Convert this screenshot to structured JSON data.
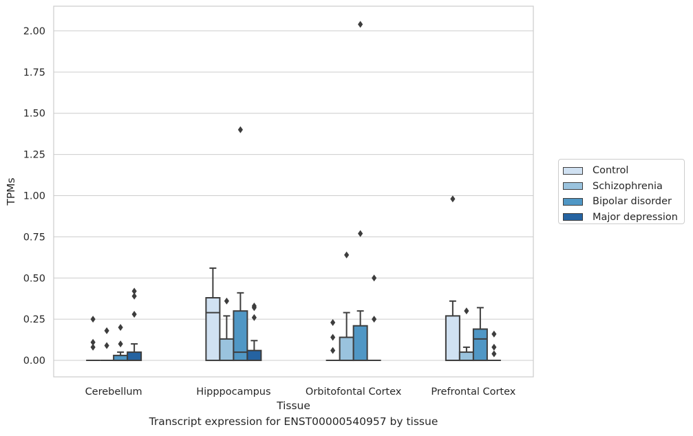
{
  "chart_data": {
    "type": "boxplot",
    "xlabel": "Tissue",
    "ylabel": "TPMs",
    "caption": "Transcript expression for ENST00000540957 by tissue",
    "ylim": [
      -0.1,
      2.15
    ],
    "yticks": [
      0.0,
      0.25,
      0.5,
      0.75,
      1.0,
      1.25,
      1.5,
      1.75,
      2.0
    ],
    "ytick_labels": [
      "0.00",
      "0.25",
      "0.50",
      "0.75",
      "1.00",
      "1.25",
      "1.50",
      "1.75",
      "2.00"
    ],
    "grid": "horizontal",
    "legend_position": "right-outside",
    "categories": [
      "Cerebellum",
      "Hipppocampus",
      "Orbitofontal Cortex",
      "Prefrontal Cortex"
    ],
    "series": [
      {
        "name": "Control",
        "color": "#d0e1f2",
        "boxes": [
          {
            "q1": 0,
            "median": 0,
            "q3": 0,
            "whislo": 0,
            "whishi": 0,
            "fliers": [
              0.25,
              0.11,
              0.08
            ]
          },
          {
            "q1": 0,
            "median": 0.29,
            "q3": 0.38,
            "whislo": 0,
            "whishi": 0.56,
            "fliers": []
          },
          {
            "q1": 0,
            "median": 0,
            "q3": 0,
            "whislo": 0,
            "whishi": 0,
            "fliers": [
              0.23,
              0.14,
              0.06
            ]
          },
          {
            "q1": 0,
            "median": 0,
            "q3": 0.27,
            "whislo": 0,
            "whishi": 0.36,
            "fliers": [
              0.98
            ]
          }
        ]
      },
      {
        "name": "Schizophrenia",
        "color": "#9ac3de",
        "boxes": [
          {
            "q1": 0,
            "median": 0,
            "q3": 0,
            "whislo": 0,
            "whishi": 0,
            "fliers": [
              0.18,
              0.09
            ]
          },
          {
            "q1": 0,
            "median": 0,
            "q3": 0.13,
            "whislo": 0,
            "whishi": 0.27,
            "fliers": [
              0.36
            ]
          },
          {
            "q1": 0,
            "median": 0,
            "q3": 0.14,
            "whislo": 0,
            "whishi": 0.29,
            "fliers": [
              0.64
            ]
          },
          {
            "q1": 0,
            "median": 0,
            "q3": 0.05,
            "whislo": 0,
            "whishi": 0.08,
            "fliers": [
              0.3
            ]
          }
        ]
      },
      {
        "name": "Bipolar disorder",
        "color": "#5097c5",
        "boxes": [
          {
            "q1": 0,
            "median": 0,
            "q3": 0.03,
            "whislo": 0,
            "whishi": 0.05,
            "fliers": [
              0.2,
              0.1
            ]
          },
          {
            "q1": 0,
            "median": 0.05,
            "q3": 0.3,
            "whislo": 0,
            "whishi": 0.41,
            "fliers": [
              1.4
            ]
          },
          {
            "q1": 0,
            "median": 0,
            "q3": 0.21,
            "whislo": 0,
            "whishi": 0.3,
            "fliers": [
              2.04,
              0.77
            ]
          },
          {
            "q1": 0,
            "median": 0.13,
            "q3": 0.19,
            "whislo": 0,
            "whishi": 0.32,
            "fliers": []
          }
        ]
      },
      {
        "name": "Major depression",
        "color": "#2563a1",
        "boxes": [
          {
            "q1": 0,
            "median": 0,
            "q3": 0.05,
            "whislo": 0,
            "whishi": 0.1,
            "fliers": [
              0.42,
              0.39,
              0.28
            ]
          },
          {
            "q1": 0,
            "median": 0,
            "q3": 0.06,
            "whislo": 0,
            "whishi": 0.12,
            "fliers": [
              0.33,
              0.32,
              0.26
            ]
          },
          {
            "q1": 0,
            "median": 0,
            "q3": 0,
            "whislo": 0,
            "whishi": 0,
            "fliers": [
              0.5,
              0.25
            ]
          },
          {
            "q1": 0,
            "median": 0,
            "q3": 0,
            "whislo": 0,
            "whishi": 0,
            "fliers": [
              0.16,
              0.08,
              0.04
            ]
          }
        ]
      }
    ]
  }
}
